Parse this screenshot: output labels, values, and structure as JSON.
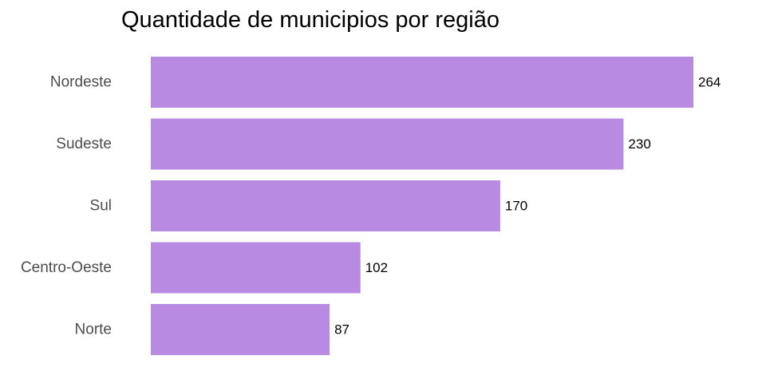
{
  "chart_data": {
    "type": "bar",
    "orientation": "horizontal",
    "title": "Quantidade de municipios por região",
    "xlabel": "",
    "ylabel": "",
    "categories": [
      "Nordeste",
      "Sudeste",
      "Sul",
      "Centro-Oeste",
      "Norte"
    ],
    "values": [
      264,
      230,
      170,
      102,
      87
    ],
    "data_labels": [
      "264",
      "230",
      "170",
      "102",
      "87"
    ],
    "xlim": [
      0,
      264
    ],
    "grid": false,
    "legend": "none",
    "bar_color": "#b98ae2",
    "label_color": "#4d4d4d",
    "value_label_color": "#000000"
  }
}
